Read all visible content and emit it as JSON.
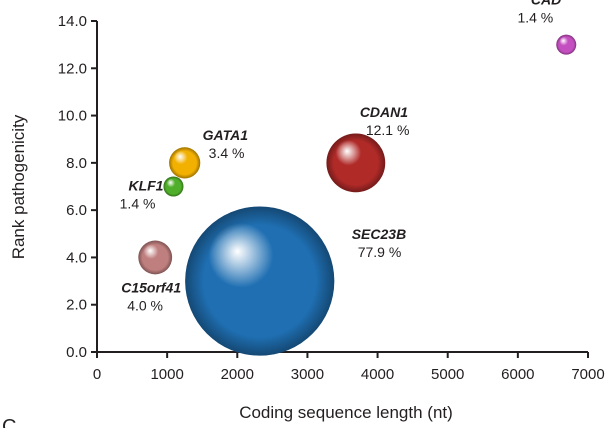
{
  "panel_label": "C",
  "colors": {
    "axis": "#231f20",
    "CAD": "#c44fc0",
    "CDAN1": "#b02a28",
    "GATA1": "#f2b000",
    "KLF1": "#4fae2a",
    "SEC23B": "#1f6fb2",
    "C15orf41": "#c07f7f"
  },
  "chart_data": {
    "type": "scatter",
    "subtype": "bubble",
    "title": "",
    "xlabel": "Coding sequence length (nt)",
    "ylabel": "Rank pathogenicity",
    "xlim": [
      0,
      7000
    ],
    "ylim": [
      0,
      14
    ],
    "x_ticks": [
      "0",
      "1000",
      "2000",
      "3000",
      "4000",
      "5000",
      "6000",
      "7000"
    ],
    "y_ticks": [
      "0.0",
      "2.0",
      "4.0",
      "6.0",
      "8.0",
      "10.0",
      "12.0",
      "14.0"
    ],
    "grid": false,
    "legend": "none",
    "points": [
      {
        "gene": "CAD",
        "x": 6690,
        "y": 13.0,
        "percent_label": "1.4 %",
        "percent": 1.4
      },
      {
        "gene": "CDAN1",
        "x": 3690,
        "y": 8.0,
        "percent_label": "12.1 %",
        "percent": 12.1
      },
      {
        "gene": "GATA1",
        "x": 1250,
        "y": 8.0,
        "percent_label": "3.4 %",
        "percent": 3.4
      },
      {
        "gene": "KLF1",
        "x": 1090,
        "y": 7.0,
        "percent_label": "1.4 %",
        "percent": 1.4
      },
      {
        "gene": "SEC23B",
        "x": 2320,
        "y": 3.0,
        "percent_label": "77.9 %",
        "percent": 77.9
      },
      {
        "gene": "C15orf41",
        "x": 830,
        "y": 4.0,
        "percent_label": "4.0 %",
        "percent": 4.0
      }
    ]
  }
}
